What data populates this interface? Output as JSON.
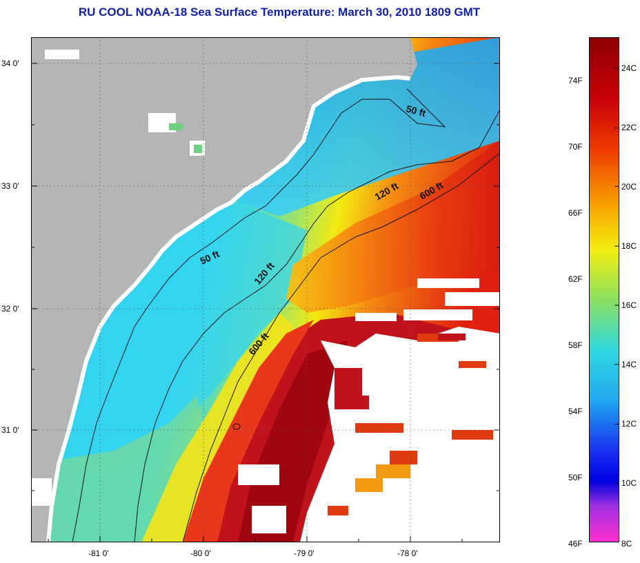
{
  "title": "RU COOL  NOAA-18  Sea Surface Temperature:  March 30, 2010 1809 GMT",
  "map": {
    "lon_labels": [
      "-81 0'",
      "-80 0'",
      "-79 0'",
      "-78 0'"
    ],
    "lat_labels": [
      "34 0'",
      "33 0'",
      "32 0'",
      "31 0'"
    ],
    "contours": [
      "50 ft",
      "120 ft",
      "600 ft"
    ],
    "contour_labels": [
      "50 ft",
      "50 ft",
      "120 ft",
      "120 ft",
      "600 ft",
      "600 ft"
    ]
  },
  "colorbar": {
    "fahrenheit": [
      "74F",
      "70F",
      "66F",
      "62F",
      "58F",
      "54F",
      "50F",
      "46F"
    ],
    "celsius": [
      "24C",
      "22C",
      "20C",
      "18C",
      "16C",
      "14C",
      "12C",
      "10C",
      "8C"
    ]
  },
  "colors": {
    "land": "#b5b5b5",
    "cloud": "#ffffff",
    "title": "#0e1fa8"
  }
}
